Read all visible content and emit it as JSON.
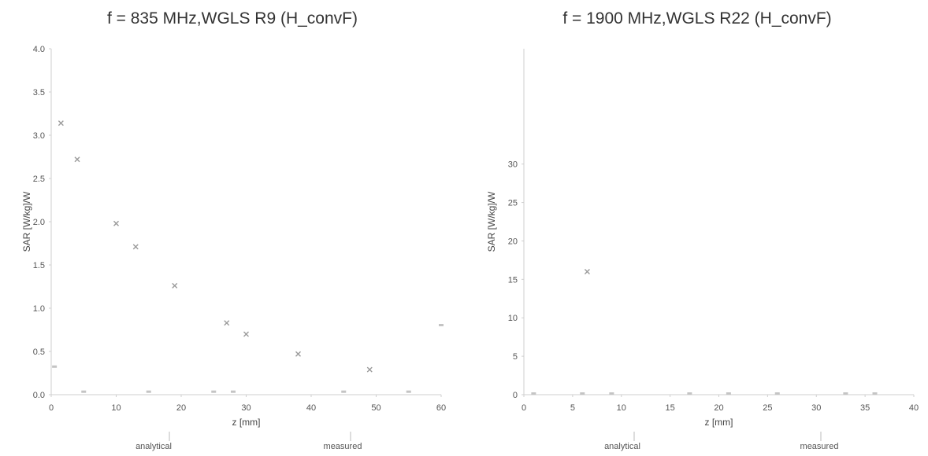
{
  "chart_data": [
    {
      "type": "scatter",
      "title": "f = 835 MHz,WGLS R9 (H_convF)",
      "xlabel": "z [mm]",
      "ylabel": "SAR [W/kg]/W",
      "xlim": [
        0,
        60
      ],
      "ylim": [
        0,
        4
      ],
      "xticks": [
        0,
        10,
        20,
        30,
        40,
        50,
        60
      ],
      "xtick_labels": [
        "0",
        "10",
        "20",
        "30",
        "40",
        "50",
        "60"
      ],
      "yticks": [
        0,
        0.5,
        1,
        1.5,
        2,
        2.5,
        3,
        3.5,
        4
      ],
      "ytick_labels": [
        "0.0",
        "0.5",
        "1.0",
        "1.5",
        "2.0",
        "2.5",
        "3.0",
        "3.5",
        "4.0"
      ],
      "grid": false,
      "legend": [
        "analytical",
        "measured"
      ],
      "legend_position": "bottom",
      "series": [
        {
          "name": "analytical",
          "color": "#9a9a9a",
          "x": [
            1.5,
            4,
            10,
            13,
            19,
            27,
            30,
            38,
            49
          ],
          "y": [
            3.14,
            2.72,
            1.98,
            1.71,
            1.26,
            0.83,
            0.7,
            0.47,
            0.29
          ]
        },
        {
          "name": "measured",
          "color": "#c4c4c4",
          "x": [
            0.5,
            5,
            15,
            25,
            28,
            45,
            55,
            60
          ],
          "y": [
            0.32,
            0.03,
            0.03,
            0.03,
            0.03,
            0.03,
            0.03,
            0.8
          ]
        }
      ]
    },
    {
      "type": "scatter",
      "title": "f = 1900 MHz,WGLS R22 (H_convF)",
      "xlabel": "z [mm]",
      "ylabel": "SAR [W/kg]/W",
      "xlim": [
        0,
        40
      ],
      "ylim": [
        0,
        45
      ],
      "xticks": [
        0,
        5,
        10,
        15,
        20,
        25,
        30,
        35,
        40
      ],
      "xtick_labels": [
        "0",
        "5",
        "10",
        "15",
        "20",
        "25",
        "30",
        "35",
        "40"
      ],
      "yticks": [
        0,
        5,
        10,
        15,
        20,
        25,
        30
      ],
      "ytick_labels": [
        "0",
        "5",
        "10",
        "15",
        "20",
        "25",
        "30"
      ],
      "grid": false,
      "legend": [
        "analytical",
        "measured"
      ],
      "legend_position": "bottom",
      "series": [
        {
          "name": "analytical",
          "color": "#9a9a9a",
          "x": [
            6.5
          ],
          "y": [
            16
          ]
        },
        {
          "name": "measured",
          "color": "#c4c4c4",
          "x": [
            1,
            6,
            9,
            17,
            21,
            26,
            33,
            36
          ],
          "y": [
            0.1,
            0.1,
            0.1,
            0.1,
            0.1,
            0.1,
            0.1,
            0.1
          ]
        }
      ]
    }
  ]
}
